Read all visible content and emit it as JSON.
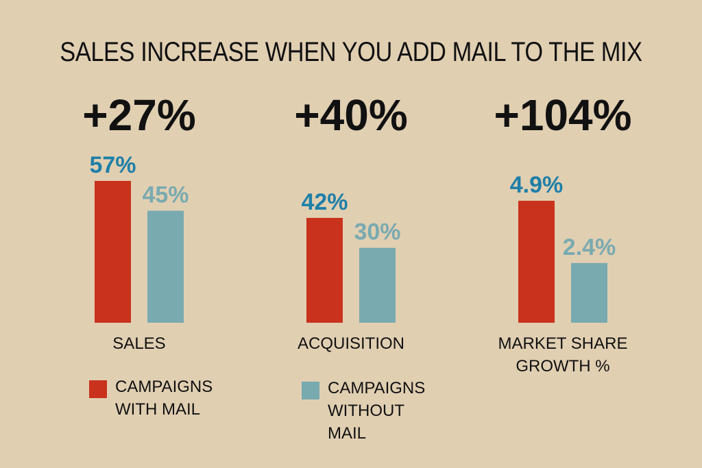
{
  "chart_data": {
    "type": "bar",
    "title": "SALES INCREASE WHEN YOU ADD MAIL TO THE MIX",
    "groups": [
      {
        "category": "SALES",
        "increase_label": "+27%",
        "with_mail": 57,
        "with_mail_label": "57%",
        "without_mail": 45,
        "without_mail_label": "45%"
      },
      {
        "category": "ACQUISITION",
        "increase_label": "+40%",
        "with_mail": 42,
        "with_mail_label": "42%",
        "without_mail": 30,
        "without_mail_label": "30%"
      },
      {
        "category": "MARKET SHARE\nGROWTH %",
        "increase_label": "+104%",
        "with_mail": 4.9,
        "with_mail_label": "4.9%",
        "without_mail": 2.4,
        "without_mail_label": "2.4%"
      }
    ],
    "series": [
      {
        "name": "CAMPAIGNS\nWITH MAIL",
        "color": "#c9321c",
        "label_color": "#1e7fa8"
      },
      {
        "name": "CAMPAIGNS\nWITHOUT MAIL",
        "color": "#79aab0",
        "label_color": "#79aab0"
      }
    ],
    "legend_position": "bottom-left",
    "grid": false
  }
}
